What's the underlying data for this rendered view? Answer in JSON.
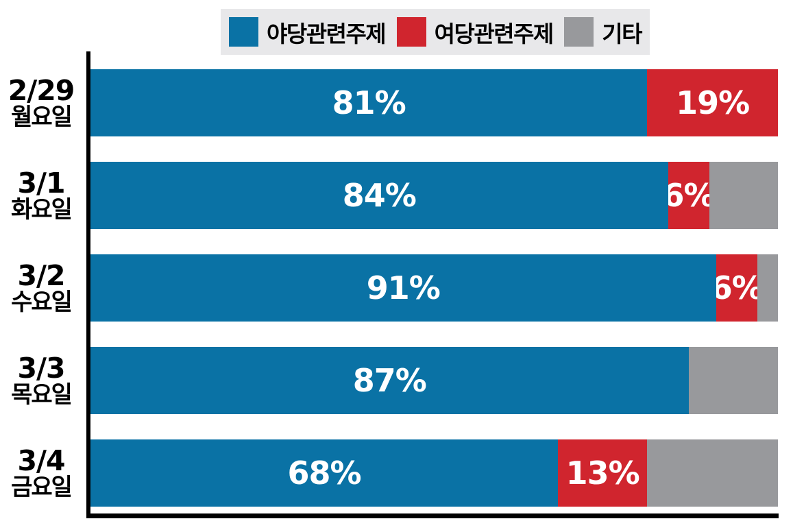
{
  "chart_data": {
    "type": "bar",
    "orientation": "horizontal",
    "stacked": true,
    "unit": "%",
    "xlim": [
      0,
      100
    ],
    "grid": false,
    "legend_position": "top",
    "legend": [
      {
        "label": "야당관련주제",
        "color": "#0a72a5"
      },
      {
        "label": "여당관련주제",
        "color": "#d0252e"
      },
      {
        "label": "기타",
        "color": "#98999c"
      }
    ],
    "categories": [
      {
        "date": "2/29",
        "weekday": "월요일"
      },
      {
        "date": "3/1",
        "weekday": "화요일"
      },
      {
        "date": "3/2",
        "weekday": "수요일"
      },
      {
        "date": "3/3",
        "weekday": "목요일"
      },
      {
        "date": "3/4",
        "weekday": "금요일"
      }
    ],
    "series": [
      {
        "name": "야당관련주제",
        "values": [
          81,
          84,
          91,
          87,
          68
        ]
      },
      {
        "name": "여당관련주제",
        "values": [
          19,
          6,
          6,
          0,
          13
        ]
      },
      {
        "name": "기타",
        "values": [
          0,
          10,
          3,
          13,
          19
        ]
      }
    ],
    "rows": [
      {
        "segments": [
          {
            "value": 81,
            "label": "81%"
          },
          {
            "value": 19,
            "label": "19%"
          },
          {
            "value": 0,
            "label": ""
          }
        ]
      },
      {
        "segments": [
          {
            "value": 84,
            "label": "84%"
          },
          {
            "value": 6,
            "label": "6%"
          },
          {
            "value": 10,
            "label": ""
          }
        ]
      },
      {
        "segments": [
          {
            "value": 91,
            "label": "91%"
          },
          {
            "value": 6,
            "label": "6%"
          },
          {
            "value": 3,
            "label": ""
          }
        ]
      },
      {
        "segments": [
          {
            "value": 87,
            "label": "87%"
          },
          {
            "value": 0,
            "label": ""
          },
          {
            "value": 13,
            "label": ""
          }
        ]
      },
      {
        "segments": [
          {
            "value": 68,
            "label": "68%"
          },
          {
            "value": 13,
            "label": "13%"
          },
          {
            "value": 19,
            "label": ""
          }
        ]
      }
    ]
  }
}
